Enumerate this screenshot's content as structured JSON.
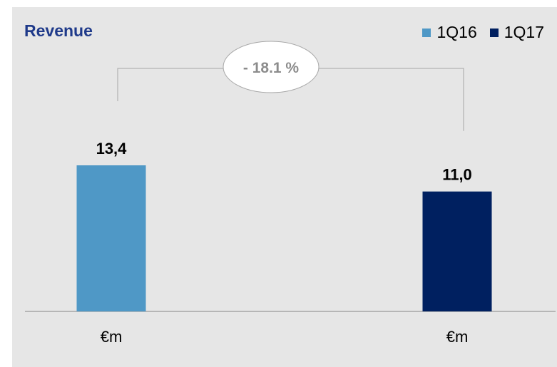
{
  "chart_data": {
    "type": "bar",
    "title": "Revenue",
    "categories": [
      "1Q16",
      "1Q17"
    ],
    "values": [
      13.4,
      11.0
    ],
    "value_labels": [
      "13,4",
      "11,0"
    ],
    "x_tick_labels": [
      "€m",
      "€m"
    ],
    "colors": [
      "#4f98c6",
      "#002060"
    ],
    "legend": [
      {
        "label": "1Q16",
        "color": "#4f98c6"
      },
      {
        "label": "1Q17",
        "color": "#002060"
      }
    ],
    "legend_position": "top-right",
    "change_label": "- 18.1 %",
    "ylim": [
      0,
      15.5
    ],
    "grid": false
  }
}
